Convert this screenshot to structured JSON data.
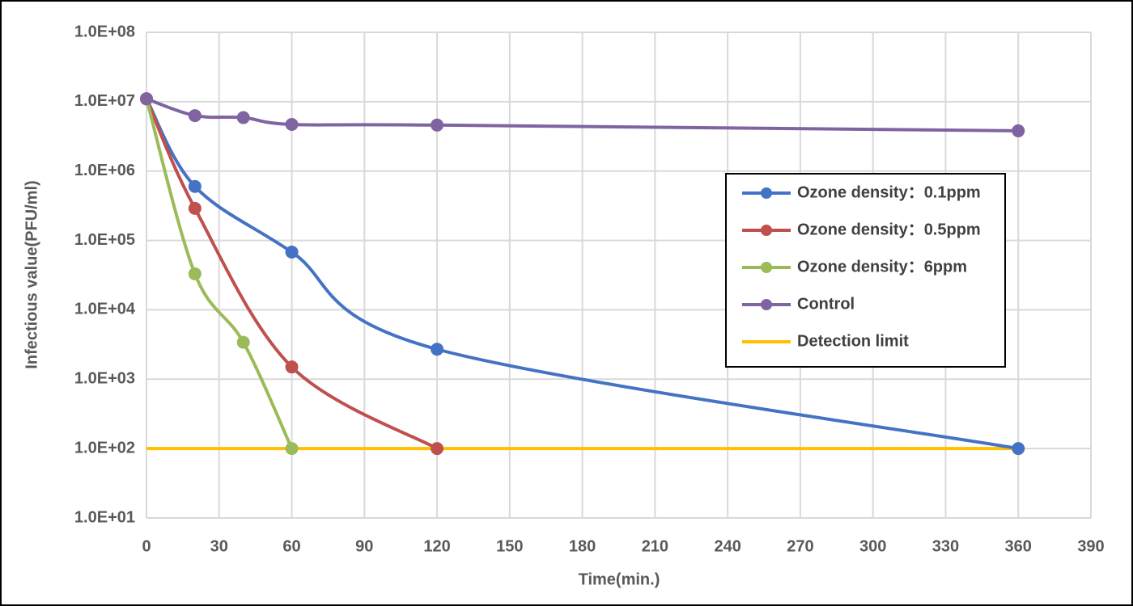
{
  "chart_data": {
    "type": "line",
    "y_label": "Infectious value(PFU/ml)",
    "x_label": "Time(min.)",
    "log_y": true,
    "grid": true,
    "smooth": true,
    "xlim": [
      0,
      390
    ],
    "xticks": [
      0,
      30,
      60,
      90,
      120,
      150,
      180,
      210,
      240,
      270,
      300,
      330,
      360,
      390
    ],
    "ylim": [
      10,
      100000000
    ],
    "yticks": [
      {
        "value": 10,
        "label": "1.0E+01"
      },
      {
        "value": 100,
        "label": "1.0E+02"
      },
      {
        "value": 1000,
        "label": "1.0E+03"
      },
      {
        "value": 10000,
        "label": "1.0E+04"
      },
      {
        "value": 100000,
        "label": "1.0E+05"
      },
      {
        "value": 1000000,
        "label": "1.0E+06"
      },
      {
        "value": 10000000,
        "label": "1.0E+07"
      },
      {
        "value": 100000000,
        "label": "1.0E+08"
      }
    ],
    "legend": "right",
    "series": [
      {
        "name": "Ozone density：0.1ppm",
        "color": "#4472c4",
        "marker": true,
        "x": [
          0,
          20,
          60,
          120,
          360
        ],
        "values": [
          11000000,
          600000,
          68000,
          2700,
          100
        ]
      },
      {
        "name": "Ozone density：0.5ppm",
        "color": "#c0504d",
        "marker": true,
        "x": [
          0,
          20,
          60,
          120
        ],
        "values": [
          11000000,
          290000,
          1500,
          100
        ]
      },
      {
        "name": "Ozone density：6ppm",
        "color": "#9bbb59",
        "marker": true,
        "x": [
          0,
          20,
          40,
          60
        ],
        "values": [
          11000000,
          33000,
          3400,
          100
        ]
      },
      {
        "name": "Control",
        "color": "#8064a2",
        "marker": true,
        "x": [
          0,
          20,
          40,
          60,
          120,
          360
        ],
        "values": [
          11000000,
          6300000,
          5900000,
          4700000,
          4600000,
          3800000
        ]
      },
      {
        "name": "Detection limit",
        "color": "#ffc000",
        "marker": false,
        "x": [
          0,
          360
        ],
        "values": [
          100,
          100
        ]
      }
    ]
  }
}
